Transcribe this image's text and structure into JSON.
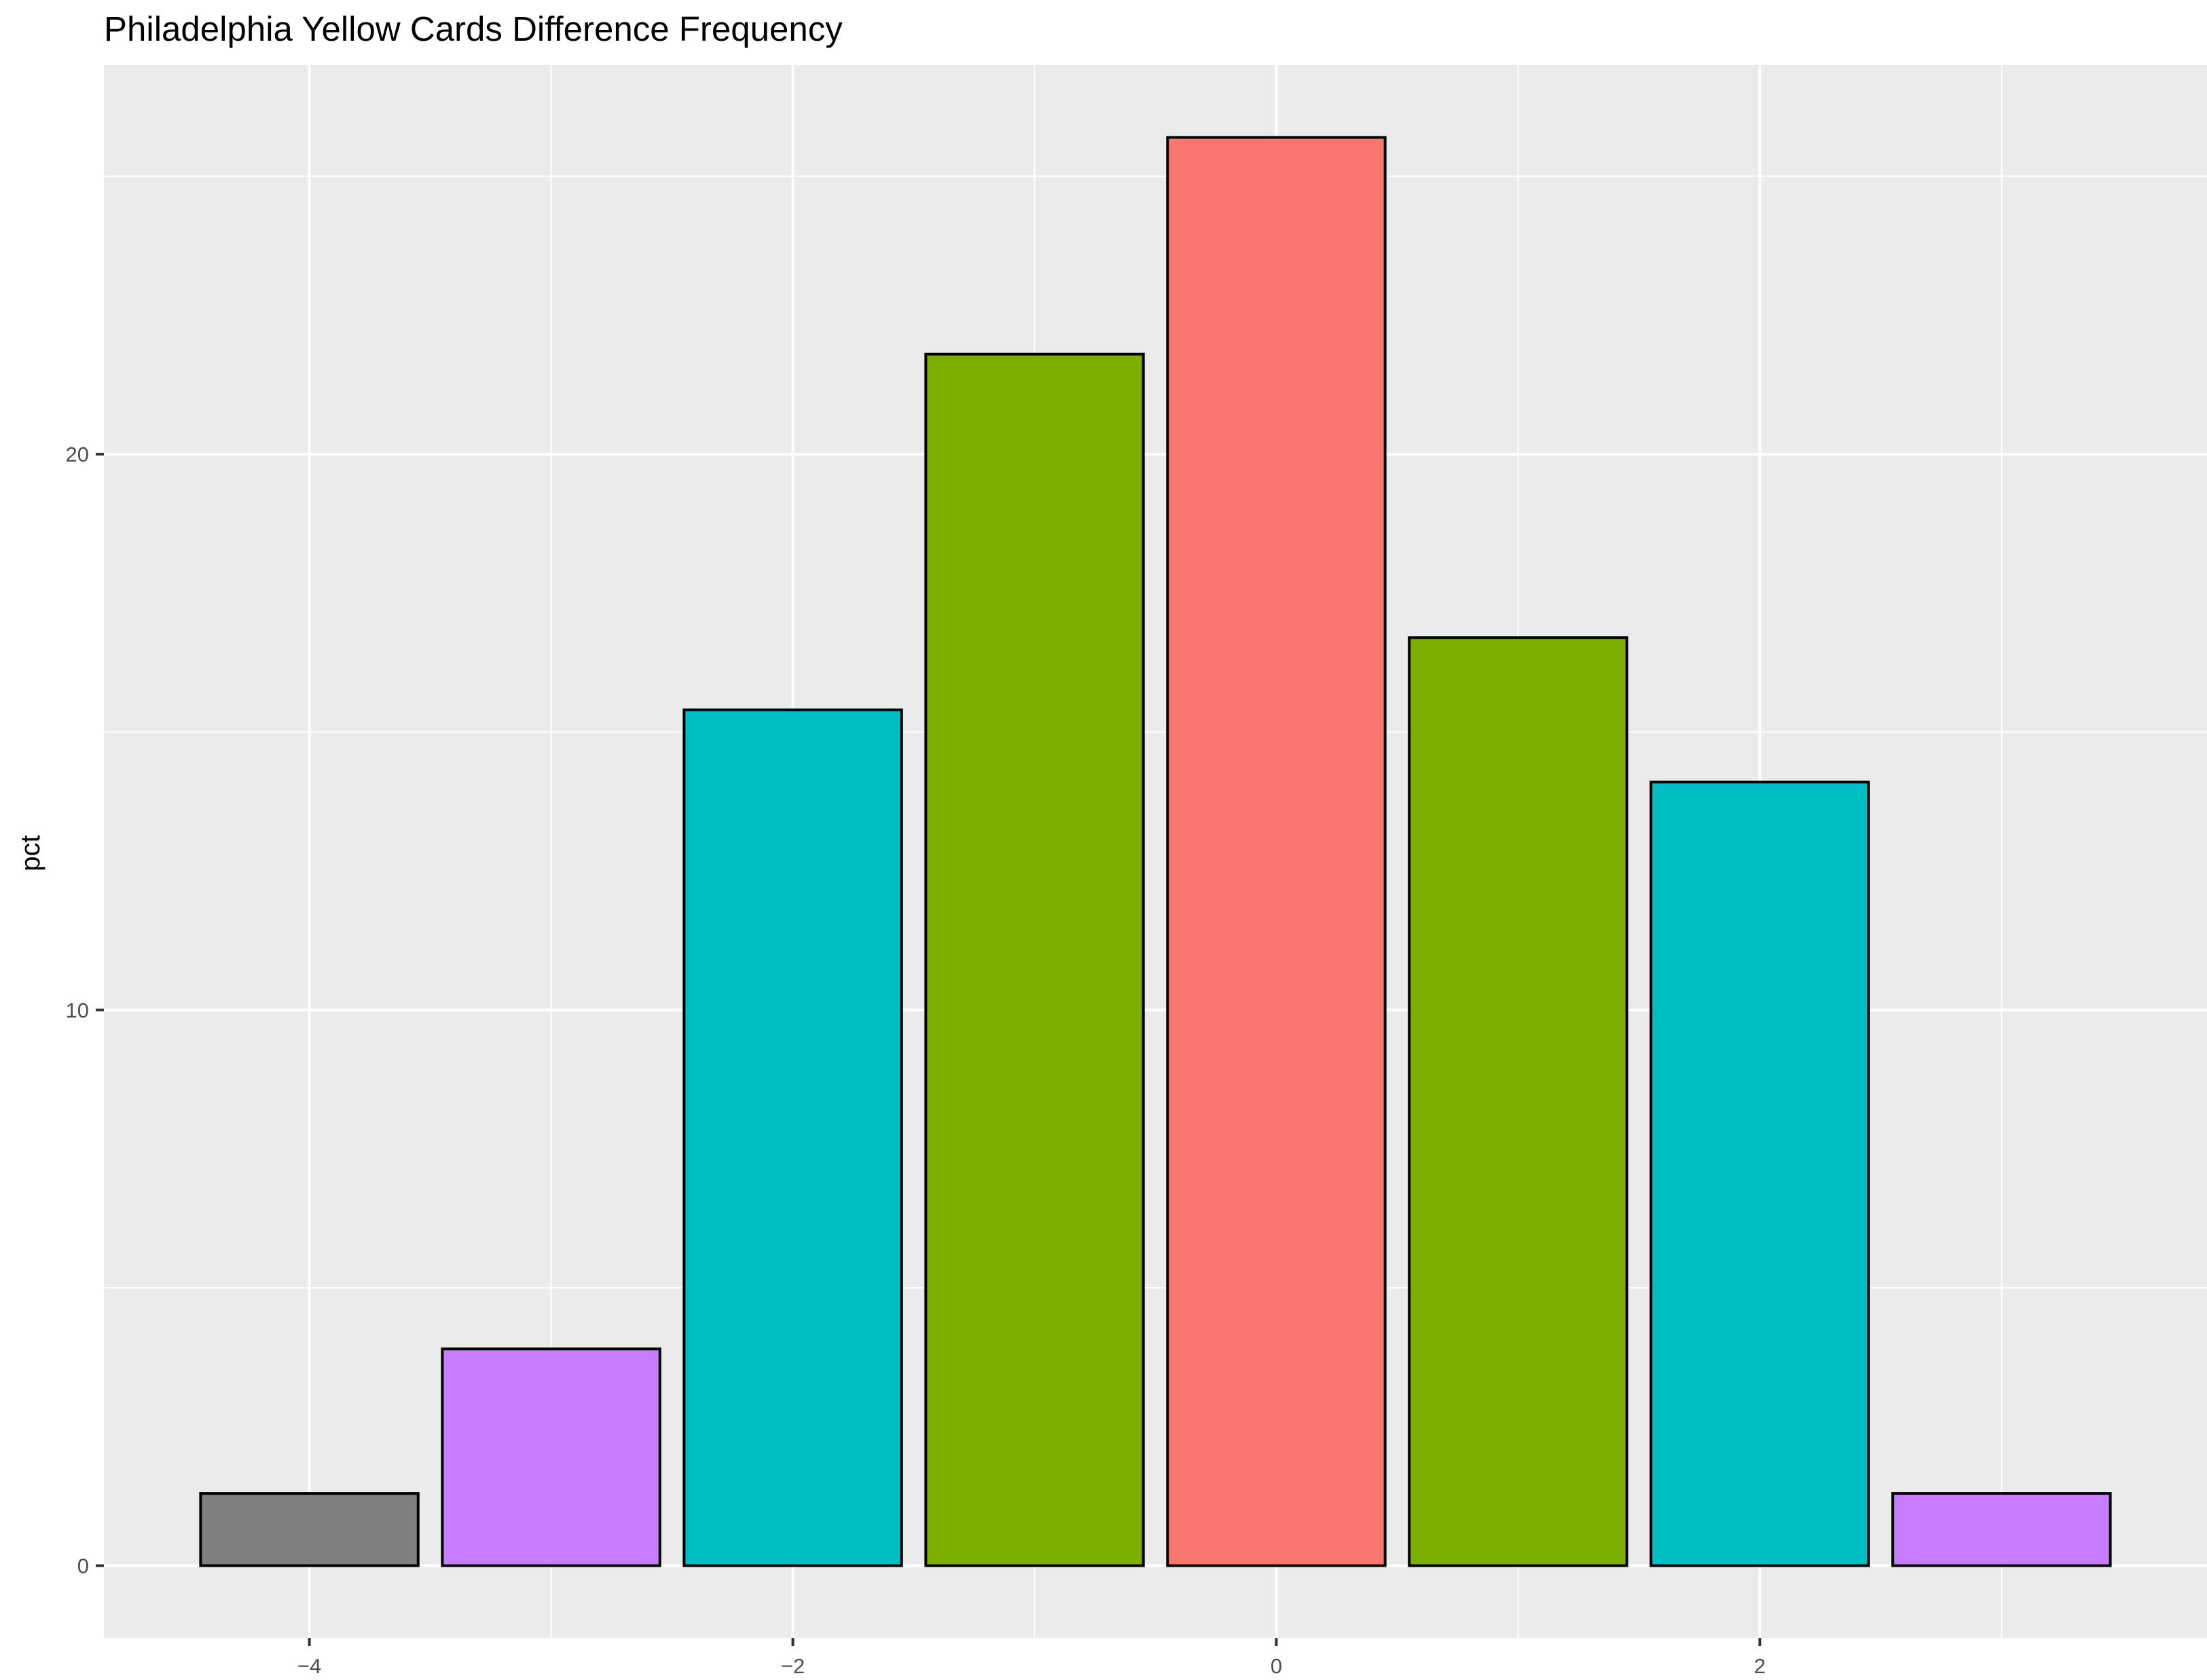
{
  "chart_data": {
    "type": "bar",
    "title": "Philadelphia Yellow Cards Difference Frequency",
    "xlabel": "",
    "ylabel": "pct",
    "x": [
      -4,
      -3,
      -2,
      -1,
      0,
      1,
      2,
      3
    ],
    "values": [
      1.3,
      3.9,
      15.4,
      21.8,
      25.7,
      16.7,
      14.1,
      1.3
    ],
    "colors": [
      "#7f7f7f",
      "#c77cff",
      "#00bfc4",
      "#7cae00",
      "#f8766d",
      "#7cae00",
      "#00bfc4",
      "#c77cff"
    ],
    "xlim": [
      -4.85,
      3.85
    ],
    "ylim": [
      -1.3,
      27.0
    ],
    "x_ticks": [
      -4,
      -2,
      0,
      2
    ],
    "x_tick_labels": [
      "−4",
      "−2",
      "0",
      "2"
    ],
    "y_ticks": [
      0,
      10,
      20
    ],
    "y_tick_labels": [
      "0",
      "10",
      "20"
    ],
    "background": "#ebebeb",
    "grid": true,
    "legend": "none"
  }
}
